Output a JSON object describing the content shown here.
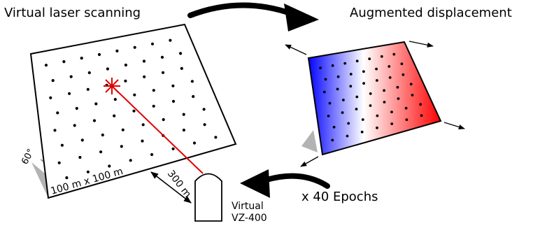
{
  "left_panel": {
    "title": "Virtual laser scanning"
  },
  "right_panel": {
    "title": "Augmented displacement"
  },
  "plot": {
    "size_label": "100 m x 100 m",
    "angle_label": "60°"
  },
  "scanner": {
    "distance_label": "300 m",
    "name_line1": "Virtual",
    "name_line2": "VZ-400"
  },
  "loop": {
    "label": "x 40 Epochs"
  },
  "colors": {
    "beam": "#e00000",
    "displacement_negative": "#0000ff",
    "displacement_positive": "#ff0000",
    "shadow": "#b3b3b3"
  }
}
